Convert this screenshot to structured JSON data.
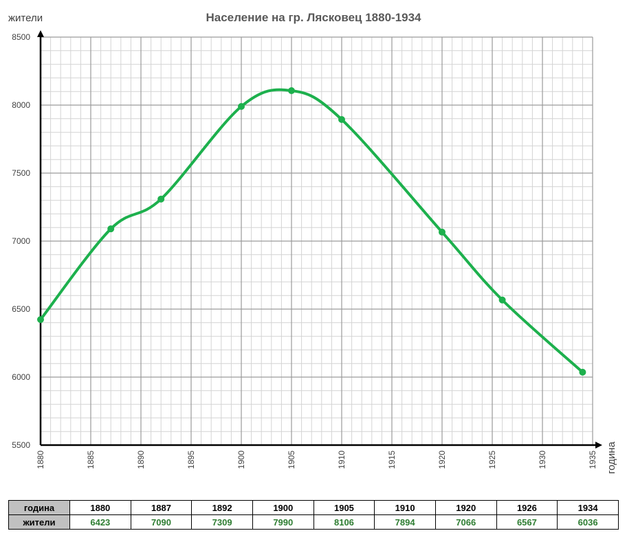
{
  "chart_data": {
    "type": "line",
    "title": "Население на гр. Лясковец 1880-1934",
    "ylabel": "жители",
    "xlabel": "година",
    "x": [
      1880,
      1887,
      1892,
      1900,
      1905,
      1910,
      1920,
      1926,
      1934
    ],
    "series": [
      {
        "values": [
          6423,
          7090,
          7309,
          7990,
          8106,
          7894,
          7066,
          6567,
          6036
        ]
      }
    ],
    "xlim": [
      1880,
      1935
    ],
    "ylim": [
      5500,
      8500
    ],
    "xticks": [
      1880,
      1885,
      1890,
      1895,
      1900,
      1905,
      1910,
      1915,
      1920,
      1925,
      1930,
      1935
    ],
    "yticks": [
      5500,
      6000,
      6500,
      7000,
      7500,
      8000,
      8500
    ],
    "grid": true,
    "line_color": "#1db04d"
  },
  "table": {
    "row1_label": "година",
    "row2_label": "жители",
    "years": [
      "1880",
      "1887",
      "1892",
      "1900",
      "1905",
      "1910",
      "1920",
      "1926",
      "1934"
    ],
    "values": [
      "6423",
      "7090",
      "7309",
      "7990",
      "8106",
      "7894",
      "7066",
      "6567",
      "6036"
    ]
  }
}
